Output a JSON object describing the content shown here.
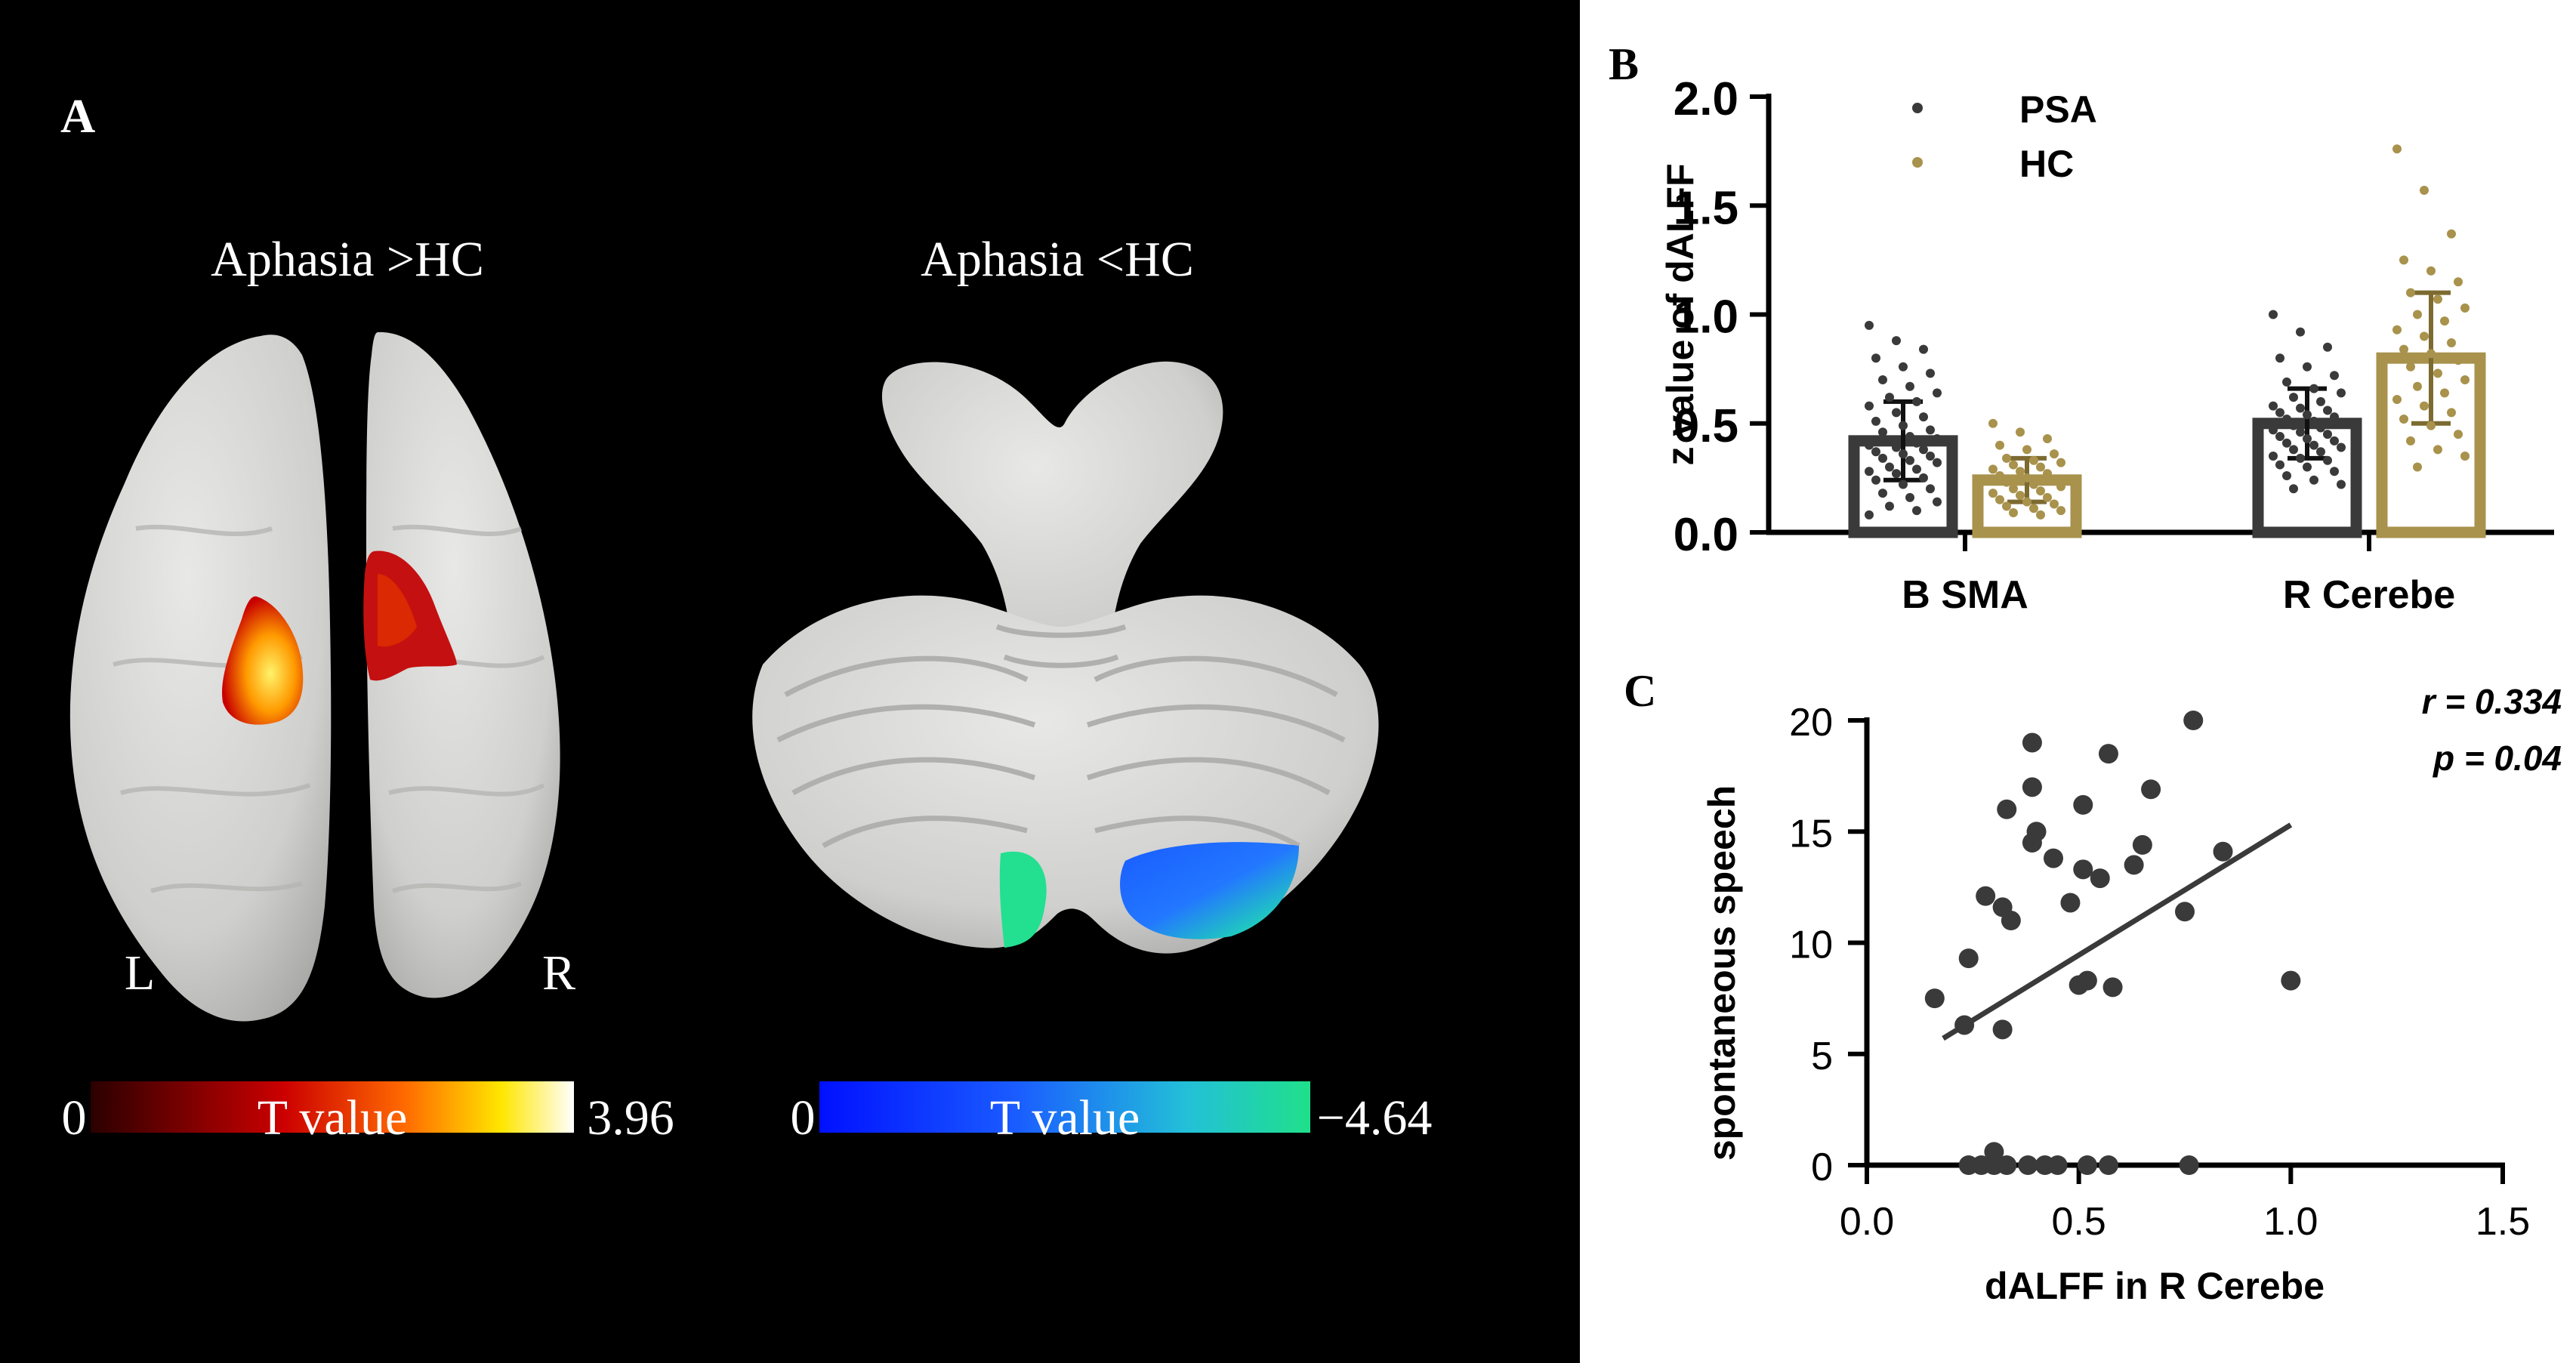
{
  "panel_a": {
    "letter": "A",
    "left_title": "Aphasia >HC",
    "right_title": "Aphasia <HC",
    "hemisphere_left": "L",
    "hemisphere_right": "R",
    "warm_scale": {
      "min_label": "0",
      "label": "T value",
      "max_label": "3.96"
    },
    "cool_scale": {
      "min_label": "0",
      "label": "T value",
      "max_label": "−4.64"
    },
    "colors": {
      "warm": [
        "#2b0000",
        "#cc0000",
        "#ff6a00",
        "#ffe600",
        "#ffffff"
      ],
      "cool": [
        "#0010ff",
        "#1a5cff",
        "#23c0d8",
        "#1fe08a"
      ]
    }
  },
  "chart_data": [
    {
      "type": "bar",
      "letter": "B",
      "categories": [
        "B SMA",
        "R Cerebe"
      ],
      "ylabel": "z value of dALFF",
      "ylim": [
        0,
        2.0
      ],
      "yticks": [
        "0.0",
        "0.5",
        "1.0",
        "1.5",
        "2.0"
      ],
      "legend_position": "top-left",
      "series": [
        {
          "name": "PSA",
          "color": "#3a3a3a",
          "values": [
            0.42,
            0.5
          ],
          "sd": [
            0.18,
            0.16
          ],
          "points": [
            [
              0.95,
              0.88,
              0.84,
              0.8,
              0.76,
              0.73,
              0.7,
              0.67,
              0.64,
              0.62,
              0.6,
              0.58,
              0.55,
              0.53,
              0.51,
              0.49,
              0.47,
              0.46,
              0.44,
              0.43,
              0.42,
              0.41,
              0.4,
              0.39,
              0.38,
              0.37,
              0.36,
              0.35,
              0.34,
              0.33,
              0.32,
              0.3,
              0.29,
              0.28,
              0.27,
              0.25,
              0.24,
              0.22,
              0.2,
              0.18,
              0.16,
              0.14,
              0.12,
              0.1,
              0.08
            ],
            [
              1.0,
              0.92,
              0.85,
              0.8,
              0.76,
              0.72,
              0.69,
              0.66,
              0.64,
              0.62,
              0.6,
              0.58,
              0.57,
              0.56,
              0.55,
              0.54,
              0.53,
              0.52,
              0.51,
              0.5,
              0.49,
              0.48,
              0.47,
              0.46,
              0.45,
              0.44,
              0.43,
              0.42,
              0.41,
              0.4,
              0.39,
              0.38,
              0.37,
              0.35,
              0.34,
              0.33,
              0.31,
              0.3,
              0.28,
              0.26,
              0.24,
              0.22,
              0.2
            ]
          ]
        },
        {
          "name": "HC",
          "color": "#a8924c",
          "values": [
            0.24,
            0.8
          ],
          "sd": [
            0.1,
            0.3
          ],
          "points": [
            [
              0.5,
              0.46,
              0.43,
              0.4,
              0.38,
              0.36,
              0.34,
              0.33,
              0.32,
              0.31,
              0.3,
              0.29,
              0.28,
              0.27,
              0.26,
              0.25,
              0.24,
              0.23,
              0.22,
              0.21,
              0.2,
              0.19,
              0.18,
              0.17,
              0.16,
              0.15,
              0.14,
              0.13,
              0.12,
              0.11,
              0.1,
              0.09,
              0.08
            ],
            [
              1.76,
              1.57,
              1.37,
              1.25,
              1.2,
              1.15,
              1.1,
              1.07,
              1.03,
              1.0,
              0.97,
              0.93,
              0.9,
              0.87,
              0.84,
              0.82,
              0.79,
              0.76,
              0.73,
              0.7,
              0.67,
              0.64,
              0.61,
              0.58,
              0.55,
              0.52,
              0.49,
              0.45,
              0.42,
              0.38,
              0.35,
              0.3
            ]
          ]
        }
      ]
    },
    {
      "type": "scatter",
      "letter": "C",
      "xlabel": "dALFF in R Cerebe",
      "ylabel": "spontaneous speech",
      "xlim": [
        0,
        1.5
      ],
      "ylim": [
        0,
        20
      ],
      "xticks": [
        "0.0",
        "0.5",
        "1.0",
        "1.5"
      ],
      "yticks": [
        "0",
        "5",
        "10",
        "15",
        "20"
      ],
      "annotation_r": "r = 0.334",
      "annotation_p": "p = 0.04",
      "color": "#3a3a3a",
      "fit_line": {
        "x": [
          0.18,
          1.0
        ],
        "y": [
          5.7,
          15.3
        ]
      },
      "points": [
        {
          "x": 0.39,
          "y": 19.0
        },
        {
          "x": 0.77,
          "y": 20.0
        },
        {
          "x": 0.57,
          "y": 18.5
        },
        {
          "x": 0.39,
          "y": 17.0
        },
        {
          "x": 0.51,
          "y": 16.2
        },
        {
          "x": 0.67,
          "y": 16.9
        },
        {
          "x": 0.33,
          "y": 16.0
        },
        {
          "x": 0.4,
          "y": 15.0
        },
        {
          "x": 0.39,
          "y": 14.5
        },
        {
          "x": 0.44,
          "y": 13.8
        },
        {
          "x": 0.65,
          "y": 14.4
        },
        {
          "x": 0.84,
          "y": 14.1
        },
        {
          "x": 0.51,
          "y": 13.3
        },
        {
          "x": 0.63,
          "y": 13.5
        },
        {
          "x": 0.55,
          "y": 12.9
        },
        {
          "x": 0.28,
          "y": 12.1
        },
        {
          "x": 0.32,
          "y": 11.6
        },
        {
          "x": 0.48,
          "y": 11.8
        },
        {
          "x": 0.34,
          "y": 11.0
        },
        {
          "x": 0.75,
          "y": 11.4
        },
        {
          "x": 0.24,
          "y": 9.3
        },
        {
          "x": 0.52,
          "y": 8.3
        },
        {
          "x": 0.5,
          "y": 8.1
        },
        {
          "x": 0.58,
          "y": 8.0
        },
        {
          "x": 1.0,
          "y": 8.3
        },
        {
          "x": 0.16,
          "y": 7.5
        },
        {
          "x": 0.23,
          "y": 6.3
        },
        {
          "x": 0.32,
          "y": 6.1
        },
        {
          "x": 0.3,
          "y": 0.6
        },
        {
          "x": 0.24,
          "y": 0.0
        },
        {
          "x": 0.27,
          "y": 0.0
        },
        {
          "x": 0.3,
          "y": 0.0
        },
        {
          "x": 0.33,
          "y": 0.0
        },
        {
          "x": 0.38,
          "y": 0.0
        },
        {
          "x": 0.42,
          "y": 0.0
        },
        {
          "x": 0.45,
          "y": 0.0
        },
        {
          "x": 0.52,
          "y": 0.0
        },
        {
          "x": 0.57,
          "y": 0.0
        },
        {
          "x": 0.76,
          "y": 0.0
        }
      ]
    }
  ]
}
